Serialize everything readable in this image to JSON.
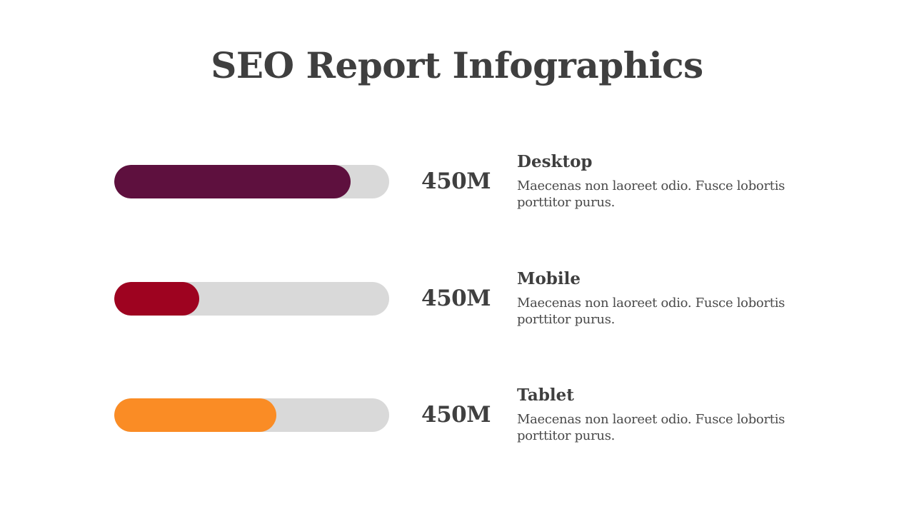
{
  "title": "SEO Report Infographics",
  "items": [
    {
      "label": "Desktop",
      "value": "450M",
      "progress": 0.86,
      "color": "#5e103e",
      "description": "Maecenas non laoreet odio. Fusce lobortis porttitor purus."
    },
    {
      "label": "Mobile",
      "value": "450M",
      "progress": 0.31,
      "color": "#9e0320",
      "description": "Maecenas non laoreet odio. Fusce lobortis porttitor purus."
    },
    {
      "label": "Tablet",
      "value": "450M",
      "progress": 0.59,
      "color": "#fa8c25",
      "description": "Maecenas non laoreet odio. Fusce lobortis porttitor purus."
    }
  ],
  "colors": {
    "text": "#3f3f3f",
    "track": "#d9d9d9"
  }
}
